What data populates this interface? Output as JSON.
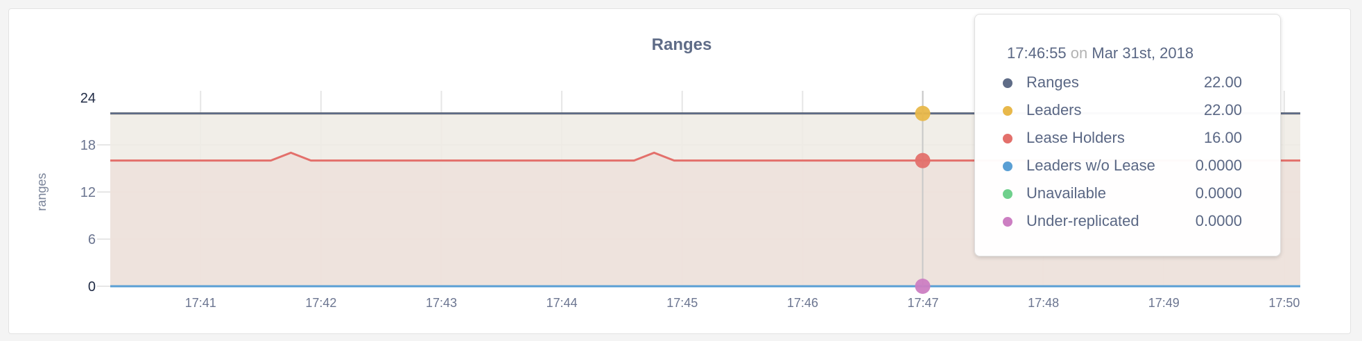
{
  "chart_data": {
    "type": "area",
    "title": "Ranges",
    "ylabel": "ranges",
    "xlabel": "",
    "ylim": [
      0,
      24
    ],
    "yticks": [
      "0",
      "6",
      "12",
      "18",
      "24"
    ],
    "xlim": [
      "17:40:15",
      "17:50:08"
    ],
    "xticks": [
      "17:41",
      "17:42",
      "17:43",
      "17:44",
      "17:45",
      "17:46",
      "17:47",
      "17:48",
      "17:49",
      "17:50"
    ],
    "grid": true,
    "series": [
      {
        "name": "Ranges",
        "color": "#5f6c87",
        "points": [
          [
            "17:40:15",
            22
          ],
          [
            "17:50:08",
            22
          ]
        ]
      },
      {
        "name": "Leaders",
        "color": "#e8b84a",
        "fill": "#efebe4",
        "points": [
          [
            "17:40:15",
            22
          ],
          [
            "17:50:08",
            22
          ]
        ]
      },
      {
        "name": "Lease Holders",
        "color": "#e3706b",
        "fill": "#ede0da",
        "points": [
          [
            "17:40:15",
            16
          ],
          [
            "17:41:35",
            16
          ],
          [
            "17:41:45",
            17
          ],
          [
            "17:41:55",
            16
          ],
          [
            "17:44:36",
            16
          ],
          [
            "17:44:46",
            17
          ],
          [
            "17:44:56",
            16
          ],
          [
            "17:50:08",
            16
          ]
        ]
      },
      {
        "name": "Leaders w/o Lease",
        "color": "#5a9fd4",
        "points": [
          [
            "17:40:15",
            0
          ],
          [
            "17:50:08",
            0
          ]
        ]
      },
      {
        "name": "Unavailable",
        "color": "#6fd08c",
        "points": [
          [
            "17:40:15",
            0
          ],
          [
            "17:50:08",
            0
          ]
        ]
      },
      {
        "name": "Under-replicated",
        "color": "#cc7ec2",
        "points": [
          [
            "17:40:15",
            0
          ],
          [
            "17:50:08",
            0
          ]
        ]
      }
    ],
    "hover_time": "17:46:55"
  },
  "tooltip": {
    "time": "17:46:55",
    "on": "on",
    "date": "Mar 31st, 2018",
    "rows": [
      {
        "label": "Ranges",
        "value": "22.00",
        "color": "#5f6c87"
      },
      {
        "label": "Leaders",
        "value": "22.00",
        "color": "#e8b84a"
      },
      {
        "label": "Lease Holders",
        "value": "16.00",
        "color": "#e3706b"
      },
      {
        "label": "Leaders w/o Lease",
        "value": "0.0000",
        "color": "#5a9fd4"
      },
      {
        "label": "Unavailable",
        "value": "0.0000",
        "color": "#6fd08c"
      },
      {
        "label": "Under-replicated",
        "value": "0.0000",
        "color": "#cc7ec2"
      }
    ]
  }
}
